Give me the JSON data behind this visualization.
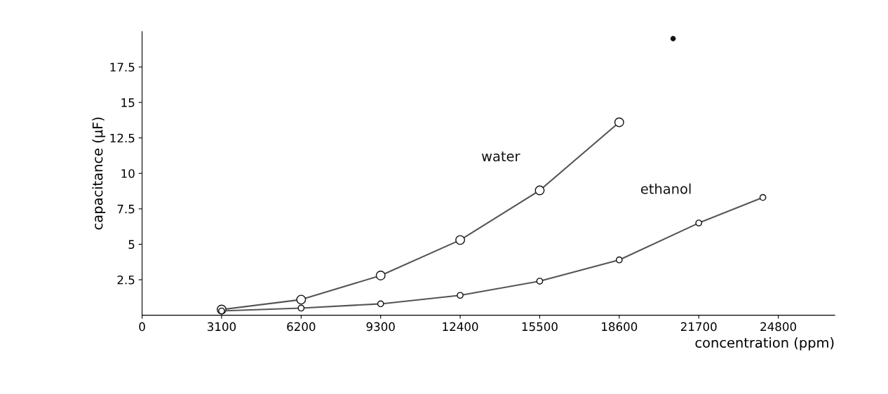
{
  "chart_data": {
    "type": "line",
    "xlabel": "concentration (ppm)",
    "ylabel": "capacitance (μF)",
    "xlim": [
      0,
      27000
    ],
    "ylim": [
      0,
      20
    ],
    "xticks": [
      0,
      3100,
      6200,
      9300,
      12400,
      15500,
      18600,
      21700,
      24800
    ],
    "yticks": [
      2.5,
      5,
      7.5,
      10,
      12.5,
      15,
      17.5
    ],
    "grid": false,
    "legend": false,
    "marker": "circle",
    "line_style": "solid",
    "series": [
      {
        "name": "water",
        "color": "#555555",
        "x": [
          3100,
          6200,
          9300,
          12400,
          15500,
          18600
        ],
        "values": [
          0.4,
          1.1,
          2.8,
          5.3,
          8.8,
          13.6
        ]
      },
      {
        "name": "ethanol",
        "color": "#555555",
        "x": [
          3100,
          6200,
          9300,
          12400,
          15500,
          18600,
          21700,
          24200
        ],
        "values": [
          0.3,
          0.5,
          0.8,
          1.4,
          2.4,
          3.9,
          6.5,
          8.3
        ]
      },
      {
        "type": "scatter",
        "color": "#111111",
        "x": [
          20700
        ],
        "values": [
          19.5
        ]
      }
    ]
  }
}
